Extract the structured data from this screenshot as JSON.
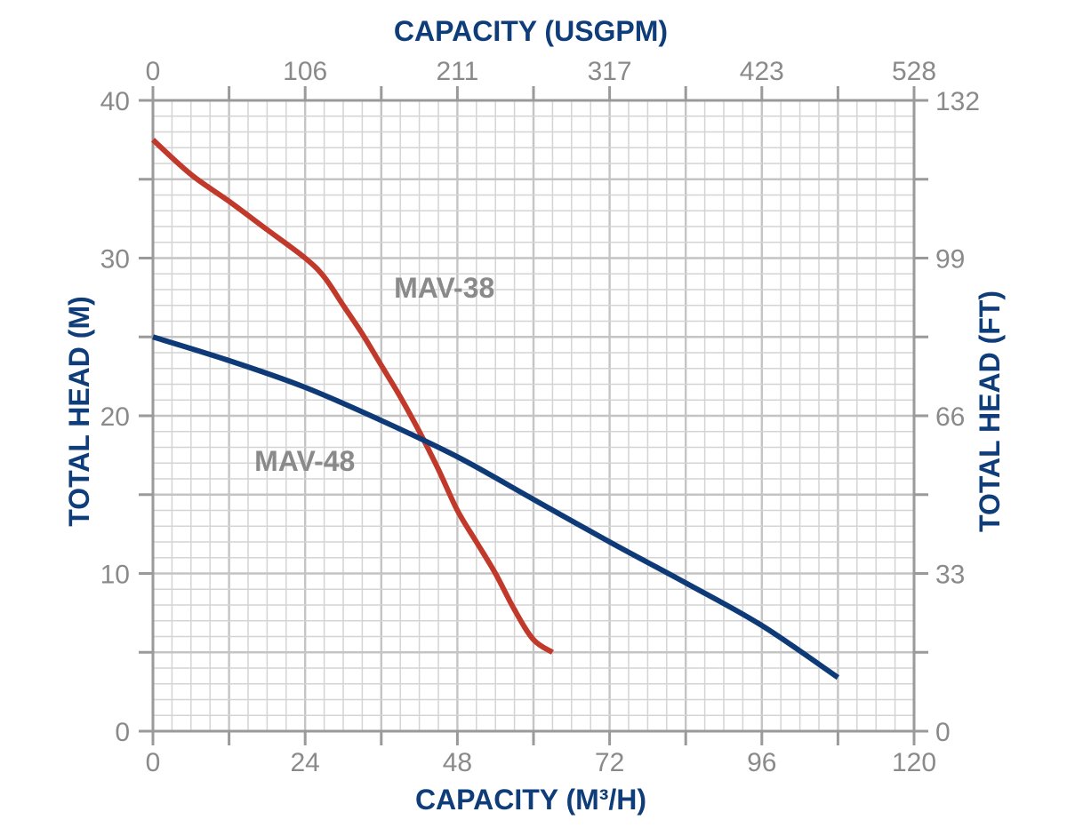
{
  "colors": {
    "axis_title": "#0f3d7a",
    "tick_label": "#8a8a8a",
    "grid_major": "#c4c4c4",
    "grid_minor": "#d4d4d4",
    "frame": "#9a9a9a",
    "series_label": "#8a8a8a"
  },
  "chart_data": {
    "type": "line",
    "x_bottom": {
      "title": "CAPACITY (M³/H)",
      "range": [
        0,
        120
      ],
      "ticks": [
        "0",
        "24",
        "48",
        "72",
        "96",
        "120"
      ]
    },
    "x_top": {
      "title": "CAPACITY (USGPM)",
      "range": [
        0,
        528
      ],
      "ticks": [
        "0",
        "106",
        "211",
        "317",
        "423",
        "528"
      ]
    },
    "y_left": {
      "title": "TOTAL HEAD (M)",
      "range": [
        0,
        40
      ],
      "ticks": [
        "0",
        "10",
        "20",
        "30",
        "40"
      ]
    },
    "y_right": {
      "title": "TOTAL HEAD (FT)",
      "range": [
        0,
        132
      ],
      "ticks": [
        "0",
        "33",
        "66",
        "99",
        "132"
      ]
    },
    "grid": true,
    "series": [
      {
        "name": "MAV-38",
        "color": "#c0392b",
        "label_pos": [
          38,
          27.5
        ],
        "x": [
          0,
          6,
          12,
          18,
          24,
          27,
          30,
          33,
          36,
          39,
          42,
          45,
          48,
          51,
          54,
          57,
          60,
          63
        ],
        "y": [
          37.5,
          35.3,
          33.6,
          31.8,
          30.0,
          28.8,
          27.0,
          25.2,
          23.2,
          21.2,
          19.0,
          16.6,
          14.0,
          12.0,
          10.0,
          7.7,
          5.8,
          5.0
        ]
      },
      {
        "name": "MAV-48",
        "color": "#0e3a78",
        "label_pos": [
          16,
          16.5
        ],
        "x": [
          0,
          12,
          24,
          36,
          48,
          60,
          72,
          84,
          96,
          108
        ],
        "y": [
          25.0,
          23.5,
          21.8,
          19.7,
          17.4,
          14.7,
          12.0,
          9.4,
          6.7,
          3.4
        ]
      }
    ]
  }
}
